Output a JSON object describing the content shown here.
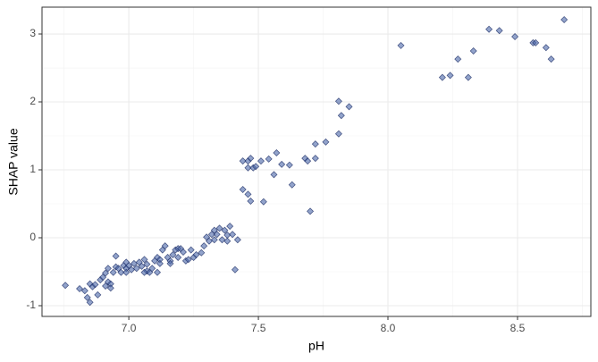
{
  "chart_data": {
    "type": "scatter",
    "x_label": "pH",
    "y_label": "SHAP value",
    "xlim": [
      6.665,
      8.783
    ],
    "ylim": [
      -1.158,
      3.395
    ],
    "xticks": [
      {
        "value": 7.0,
        "label": "7.0"
      },
      {
        "value": 7.5,
        "label": "7.5"
      },
      {
        "value": 8.0,
        "label": "8.0"
      },
      {
        "value": 8.5,
        "label": "8.5"
      }
    ],
    "yticks": [
      -1,
      0,
      1,
      2,
      3
    ],
    "x_minor_grid": [
      6.75,
      7.25,
      7.75,
      8.25,
      8.75
    ],
    "y_minor_grid": [
      -0.5,
      0.5,
      1.5,
      2.5
    ],
    "grid": true,
    "color": "#4a66a8",
    "edge_color": "#1f2f66",
    "series": [
      {
        "x": [
          6.755,
          6.81,
          6.83,
          6.84,
          6.85,
          6.85,
          6.86,
          6.87,
          6.88,
          6.89,
          6.9,
          6.91,
          6.92,
          6.92,
          6.93,
          6.94,
          6.95,
          6.95,
          6.96,
          6.97,
          6.98,
          6.99,
          6.99,
          7.0,
          7.01,
          7.02,
          7.03,
          7.04,
          7.05,
          7.06,
          7.07,
          7.07,
          7.08,
          7.09,
          7.1,
          7.11,
          7.12,
          7.12,
          7.13,
          7.14,
          7.15,
          7.16,
          7.17,
          7.18,
          7.19,
          7.19,
          7.2,
          7.21,
          7.22,
          7.23,
          7.24,
          7.25,
          7.26,
          7.28,
          7.29,
          7.3,
          7.31,
          7.32,
          7.33,
          7.33,
          7.34,
          7.35,
          7.36,
          7.37,
          7.38,
          7.38,
          7.39,
          7.4,
          7.41,
          7.42,
          6.91,
          6.93,
          6.99,
          7.06,
          7.11,
          7.16,
          7.44,
          7.46,
          7.47,
          7.46,
          7.48,
          7.49,
          7.44,
          7.46,
          7.47,
          7.52,
          7.51,
          7.54,
          7.56,
          7.57,
          7.59,
          7.62,
          7.63,
          7.68,
          7.69,
          7.7,
          7.72,
          7.72,
          7.76,
          7.81,
          7.81,
          7.82,
          7.85,
          8.05,
          8.21,
          8.24,
          8.27,
          8.31,
          8.33,
          8.39,
          8.43,
          8.49,
          8.56,
          8.57,
          8.61,
          8.63,
          8.68
        ],
        "values": [
          -0.7,
          -0.75,
          -0.78,
          -0.88,
          -0.95,
          -0.68,
          -0.72,
          -0.69,
          -0.84,
          -0.62,
          -0.58,
          -0.52,
          -0.65,
          -0.45,
          -0.68,
          -0.51,
          -0.27,
          -0.43,
          -0.45,
          -0.51,
          -0.41,
          -0.36,
          -0.45,
          -0.41,
          -0.47,
          -0.38,
          -0.45,
          -0.36,
          -0.42,
          -0.32,
          -0.49,
          -0.39,
          -0.51,
          -0.45,
          -0.34,
          -0.29,
          -0.32,
          -0.38,
          -0.18,
          -0.12,
          -0.29,
          -0.34,
          -0.25,
          -0.18,
          -0.16,
          -0.29,
          -0.16,
          -0.21,
          -0.34,
          -0.32,
          -0.18,
          -0.29,
          -0.25,
          -0.22,
          -0.12,
          0.01,
          -0.05,
          0.05,
          -0.03,
          0.11,
          0.05,
          0.14,
          -0.03,
          0.11,
          0.04,
          -0.05,
          0.17,
          0.05,
          -0.47,
          -0.03,
          -0.71,
          -0.74,
          -0.51,
          -0.51,
          -0.51,
          -0.38,
          1.13,
          1.13,
          1.17,
          1.03,
          1.03,
          1.05,
          0.71,
          0.64,
          0.54,
          0.53,
          1.13,
          1.16,
          0.93,
          1.25,
          1.08,
          1.07,
          0.78,
          1.17,
          1.13,
          0.39,
          1.17,
          1.38,
          1.41,
          1.53,
          2.01,
          1.8,
          1.93,
          2.83,
          2.36,
          2.39,
          2.63,
          2.36,
          2.75,
          3.07,
          3.05,
          2.96,
          2.87,
          2.87,
          2.8,
          2.63,
          3.21
        ]
      }
    ]
  }
}
